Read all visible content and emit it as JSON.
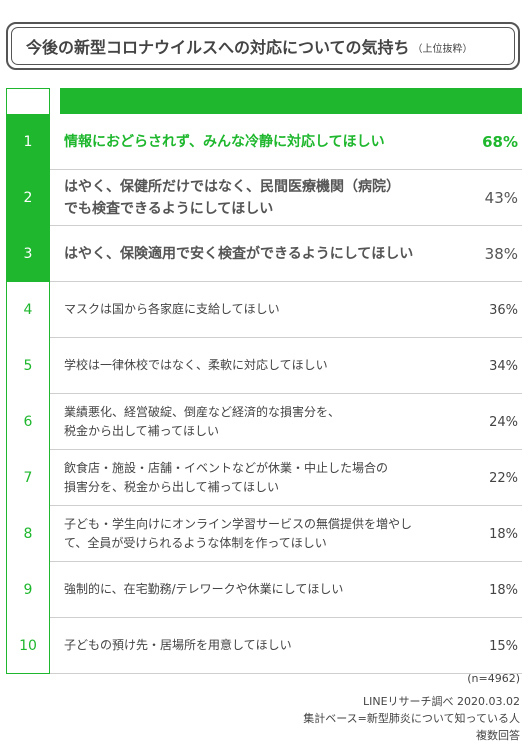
{
  "title": {
    "main": "今後の新型コロナウイルスへの対応についての気持ち",
    "sub": "（上位抜粋）"
  },
  "colors": {
    "accent": "#1eb72d",
    "text": "#444444",
    "rule": "#cfcfcf"
  },
  "chart_data": {
    "type": "table",
    "title": "今後の新型コロナウイルスへの対応についての気持ち",
    "rows": [
      {
        "rank": "1",
        "label": "情報におどらされず、みんな冷静に対応してほしい",
        "pct": "68%",
        "value": 68
      },
      {
        "rank": "2",
        "label": "はやく、保健所だけではなく、民間医療機関（病院）\nでも検査できるようにしてほしい",
        "pct": "43%",
        "value": 43
      },
      {
        "rank": "3",
        "label": "はやく、保険適用で安く検査ができるようにしてほしい",
        "pct": "38%",
        "value": 38
      },
      {
        "rank": "4",
        "label": "マスクは国から各家庭に支給してほしい",
        "pct": "36%",
        "value": 36
      },
      {
        "rank": "5",
        "label": "学校は一律休校ではなく、柔軟に対応してほしい",
        "pct": "34%",
        "value": 34
      },
      {
        "rank": "6",
        "label": "業績悪化、経営破綻、倒産など経済的な損害分を、\n税金から出して補ってほしい",
        "pct": "24%",
        "value": 24
      },
      {
        "rank": "7",
        "label": "飲食店・施設・店舗・イベントなどが休業・中止した場合の\n損害分を、税金から出して補ってほしい",
        "pct": "22%",
        "value": 22
      },
      {
        "rank": "8",
        "label": "子ども・学生向けにオンライン学習サービスの無償提供を増やし\nて、全員が受けられるような体制を作ってほしい",
        "pct": "18%",
        "value": 18
      },
      {
        "rank": "9",
        "label": "強制的に、在宅勤務/テレワークや休業にしてほしい",
        "pct": "18%",
        "value": 18
      },
      {
        "rank": "10",
        "label": "子どもの預け先・居場所を用意してほしい",
        "pct": "15%",
        "value": 15
      }
    ]
  },
  "footer": {
    "n": "(n=4962)",
    "source": "LINEリサーチ調べ 2020.03.02",
    "base": "集計ベース=新型肺炎について知っている人",
    "answer": "複数回答"
  }
}
